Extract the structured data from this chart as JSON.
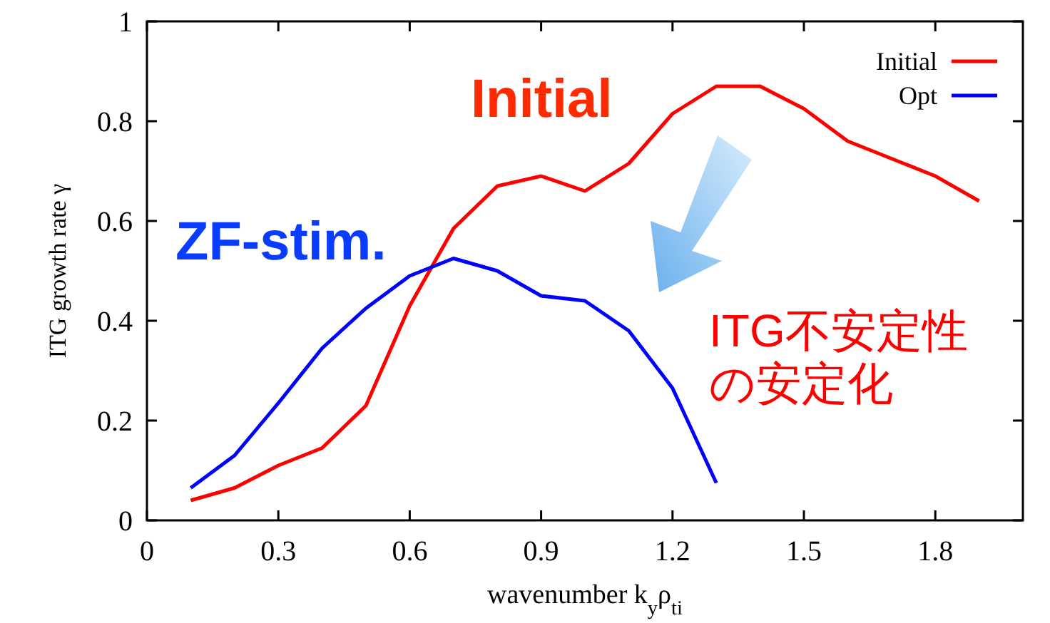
{
  "chart_data": {
    "type": "line",
    "xlabel": "wavenumber k$_{y}$ρ$_{ti}$",
    "ylabel": "ITG growth rate γ",
    "x": [
      0.1,
      0.2,
      0.3,
      0.4,
      0.5,
      0.6,
      0.7,
      0.8,
      0.9,
      1.0,
      1.1,
      1.2,
      1.3,
      1.4,
      1.5,
      1.6,
      1.7,
      1.8,
      1.9
    ],
    "series": [
      {
        "name": "Initial",
        "color": "#ff0000",
        "values": [
          0.04,
          0.065,
          0.11,
          0.145,
          0.23,
          0.43,
          0.585,
          0.67,
          0.69,
          0.66,
          0.715,
          0.815,
          0.87,
          0.87,
          0.825,
          0.76,
          0.725,
          0.69,
          0.64
        ]
      },
      {
        "name": "Opt",
        "color": "#0000ff",
        "values": [
          0.065,
          0.13,
          0.235,
          0.345,
          0.425,
          0.49,
          0.525,
          0.5,
          0.45,
          0.44,
          0.38,
          0.265,
          0.075,
          null,
          null,
          null,
          null,
          null,
          null
        ]
      }
    ],
    "xlim": [
      0,
      2
    ],
    "ylim": [
      0,
      1
    ],
    "xticks": [
      0,
      0.3,
      0.6,
      0.9,
      1.2,
      1.5,
      1.8
    ],
    "yticks": [
      0,
      0.2,
      0.4,
      0.6,
      0.8,
      1
    ],
    "annotations": [
      "Initial",
      "ZF-stim.",
      "ITG不安定性",
      "の安定化"
    ],
    "legend": "top right",
    "grid": false,
    "marker": "none",
    "line_style": "solid"
  }
}
